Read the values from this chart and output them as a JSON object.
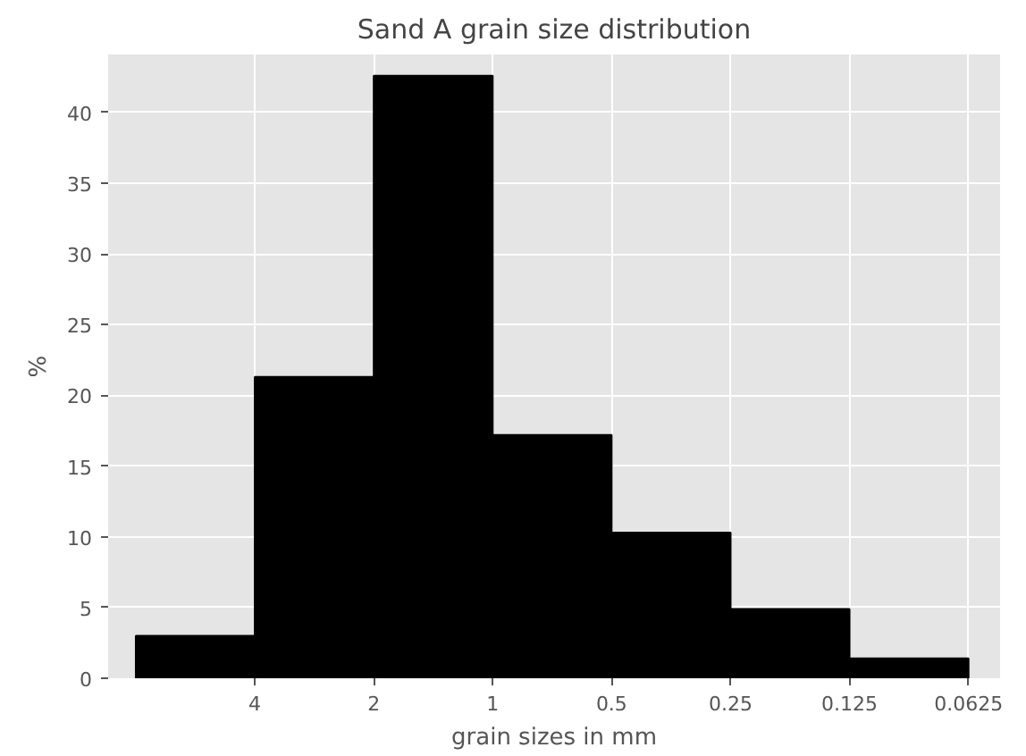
{
  "chart_data": {
    "type": "histogram",
    "title": "Sand A grain size distribution",
    "xlabel": "grain sizes in mm",
    "ylabel": "%",
    "bins": [
      8,
      4,
      2,
      1,
      0.5,
      0.25,
      0.125,
      0.0625
    ],
    "values": [
      3.0,
      21.3,
      42.6,
      17.2,
      10.3,
      4.9,
      1.4
    ],
    "color": "#000000",
    "log": "x",
    "xlim": [
      9.4,
      0.052
    ],
    "ylim": [
      0,
      44.1
    ],
    "xticks": [
      4,
      2,
      1,
      0.5,
      0.25,
      0.125,
      0.0625
    ],
    "yticks": [
      0,
      5,
      10,
      15,
      20,
      25,
      30,
      35,
      40
    ],
    "grid": true
  }
}
